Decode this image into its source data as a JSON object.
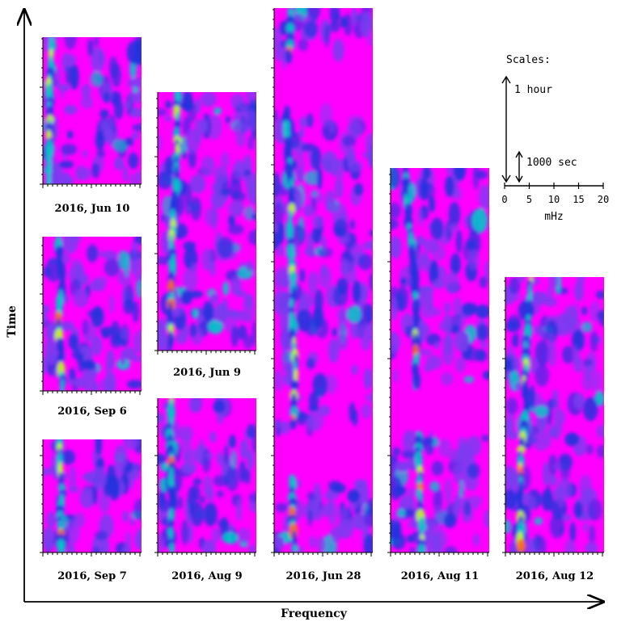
{
  "chart_data": {
    "type": "heatmap",
    "xlabel": "Frequency",
    "ylabel": "Time",
    "colors": {
      "background": "#ff00ff",
      "blob_low": "#7a3cf0",
      "blob_mid": "#2233dd",
      "blob_high": "#00c8c8",
      "blob_peak": "#c8ff00",
      "blob_hot": "#ff6a00"
    },
    "panels": [
      {
        "label": "2016, Jun 10"
      },
      {
        "label": "2016, Sep 6"
      },
      {
        "label": "2016, Sep 7"
      },
      {
        "label": "2016, Jun 9"
      },
      {
        "label": "2016, Aug 9"
      },
      {
        "label": "2016, Jun 28"
      },
      {
        "label": "2016, Aug 11"
      },
      {
        "label": "2016, Aug 12"
      }
    ],
    "scales": {
      "title": "Scales:",
      "time_long": "1 hour",
      "time_short": "1000 sec",
      "freq_ticks": [
        "0",
        "5",
        "10",
        "15",
        "20"
      ],
      "freq_unit": "mHz"
    }
  }
}
